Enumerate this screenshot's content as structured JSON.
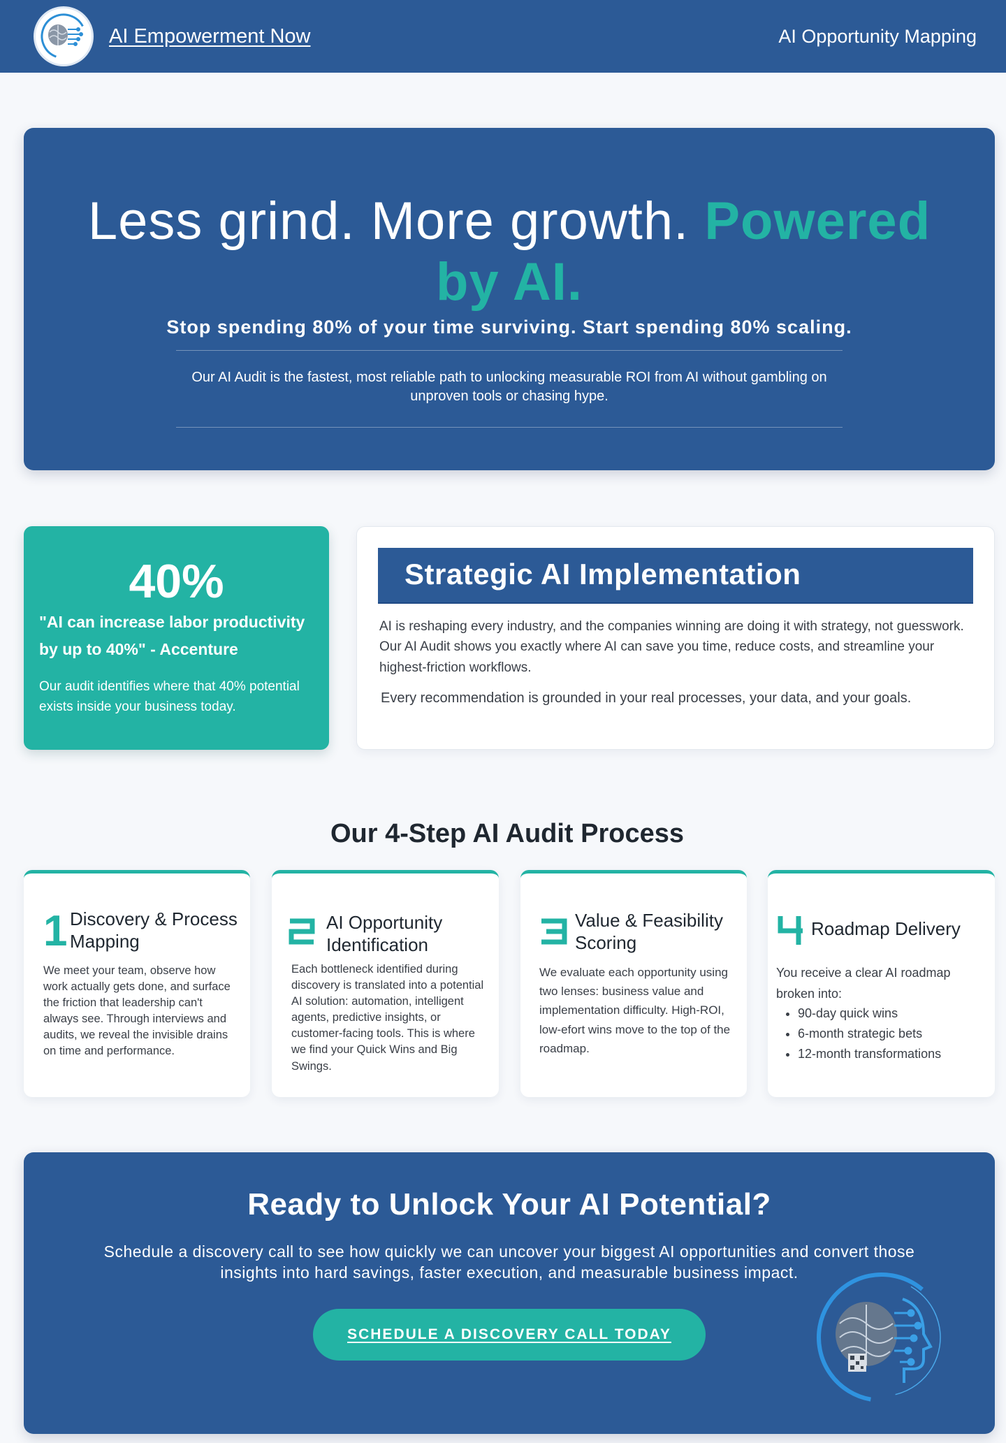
{
  "header": {
    "brand_name": "AI Empowerment Now",
    "nav_link": "AI Opportunity Mapping",
    "logo_icon": "brain-circuit-logo-icon",
    "color": "#2c5a96"
  },
  "hero": {
    "title_main": "Less grind. More growth. ",
    "title_accent": "Powered by AI.",
    "subtitle": "Stop spending 80% of your time surviving. Start spending 80% scaling.",
    "description": "Our AI Audit is the fastest, most reliable path to unlocking measurable ROI from AI without gambling on unproven tools or chasing hype."
  },
  "stat": {
    "number": "40%",
    "quote": "\"AI can increase labor productivity by up to 40%\" - Accenture",
    "description": "Our audit identifies where that 40% potential exists inside your business today."
  },
  "strategic": {
    "title": "Strategic AI Implementation",
    "paragraph1": "AI is reshaping every industry, and the companies winning are doing it with strategy, not guesswork. Our AI Audit shows you exactly where AI can save you time, reduce costs, and streamline your highest-friction workflows.",
    "paragraph2": "Every recommendation is grounded in your real processes, your data, and your goals."
  },
  "process": {
    "title": "Our 4-Step AI Audit Process",
    "steps": [
      {
        "number": "1",
        "title": "Discovery & Process Mapping",
        "description": "We meet your team, observe how work actually gets done, and surface the friction that leadership can't always see. Through interviews and audits, we reveal the invisible drains on time and performance."
      },
      {
        "number": "2",
        "title": "AI Opportunity Identification",
        "description": "Each bottleneck identified during discovery is translated into a potential AI solution: automation, intelligent agents, predictive insights, or customer-facing tools. This is where we find your Quick Wins and Big Swings."
      },
      {
        "number": "3",
        "title": "Value & Feasibility Scoring",
        "description": "We evaluate each opportunity using two lenses: business value and implementation difficulty. High-ROI, low-efort wins move to the top of the roadmap."
      },
      {
        "number": "4",
        "title": "Roadmap Delivery",
        "description": "You receive a clear AI roadmap broken into:",
        "items": [
          "90-day quick wins",
          "6-month strategic bets",
          "12-month transformations"
        ]
      }
    ]
  },
  "cta": {
    "title": "Ready to Unlock Your AI Potential?",
    "description": "Schedule a discovery call to see how quickly we can uncover your biggest AI opportunities and convert those insights into hard savings, faster execution, and measurable business impact.",
    "button_label": "SCHEDULE A DISCOVERY CALL TODAY",
    "logo_icon": "ai-head-circuit-logo-icon"
  },
  "colors": {
    "primary_blue": "#2c5a96",
    "accent_teal": "#23b3a4",
    "background": "#f6f8fb"
  }
}
